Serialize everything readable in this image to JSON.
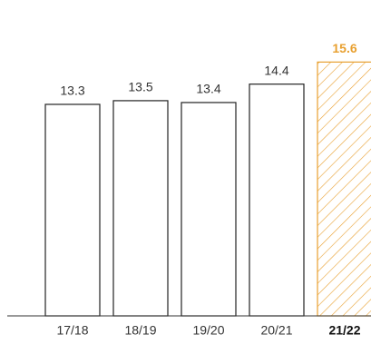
{
  "chart_data": {
    "type": "bar",
    "categories": [
      "17/18",
      "18/19",
      "19/20",
      "20/21",
      "21/22"
    ],
    "values": [
      13.3,
      13.5,
      13.4,
      14.4,
      15.6
    ],
    "colors": [
      "#222222",
      "#222222",
      "#222222",
      "#222222",
      "#e8a030"
    ],
    "ylim": [
      1.8,
      17
    ]
  }
}
